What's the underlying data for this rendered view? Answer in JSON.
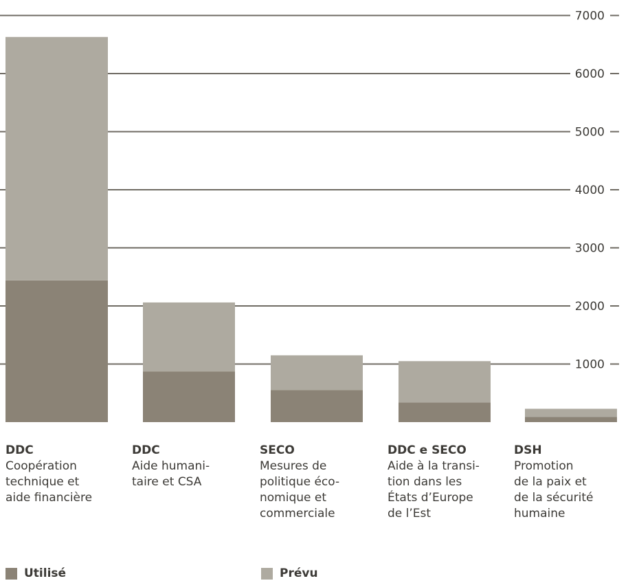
{
  "chart_data": {
    "type": "bar",
    "stacked": true,
    "ylim": [
      0,
      7000
    ],
    "yticks": [
      1000,
      2000,
      3000,
      4000,
      5000,
      6000,
      7000
    ],
    "y_axis_side": "right",
    "grid": true,
    "categories": [
      {
        "code": "DDC",
        "description": "Coopération\ntechnique et\naide financière"
      },
      {
        "code": "DDC",
        "description": "Aide humani-\ntaire et CSA"
      },
      {
        "code": "SECO",
        "description": "Mesures de\npolitique éco-\nnomique et\ncommerciale"
      },
      {
        "code": "DDC e SECO",
        "description": "Aide à la transi-\ntion dans les\nÉtats d’Europe\nde l’Est"
      },
      {
        "code": "DSH",
        "description": "Promotion\nde la paix et\nde la sécurité\nhumaine"
      }
    ],
    "series": [
      {
        "name": "Utilisé",
        "color": "#8b8376",
        "values": [
          2440,
          870,
          550,
          340,
          90
        ]
      },
      {
        "name": "Prévu",
        "color": "#aeaaa0",
        "values": [
          4190,
          1190,
          600,
          710,
          140
        ]
      }
    ],
    "legend_position": "bottom"
  }
}
